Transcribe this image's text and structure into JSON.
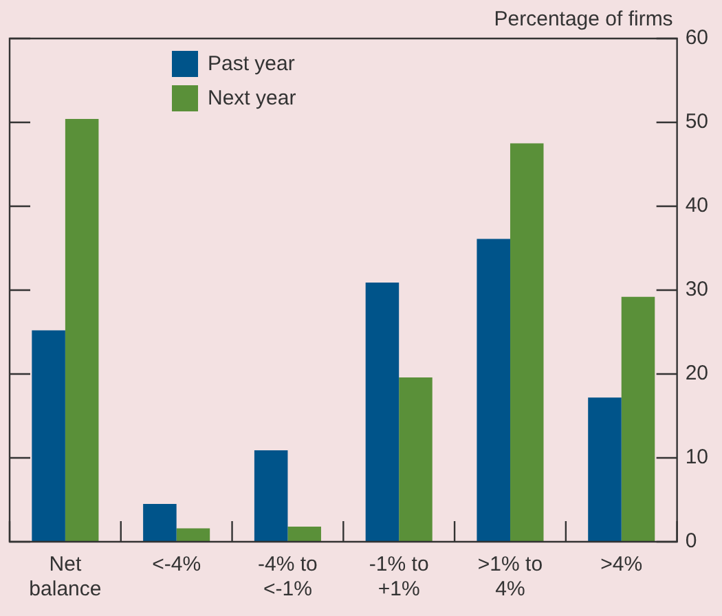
{
  "chart_data": {
    "type": "bar",
    "ylabel": "Percentage of firms",
    "categories": [
      "Net balance",
      "<-4%",
      "-4% to <-1%",
      "-1% to +1%",
      ">1% to 4%",
      ">4%"
    ],
    "series": [
      {
        "name": "Past year",
        "color": "#00548a",
        "values": [
          25.2,
          4.5,
          10.9,
          30.9,
          36.1,
          17.2
        ]
      },
      {
        "name": "Next year",
        "color": "#5a9039",
        "values": [
          50.4,
          1.6,
          1.8,
          19.6,
          47.5,
          29.2
        ]
      }
    ],
    "ylim": [
      0,
      60
    ],
    "yticks": [
      0,
      10,
      20,
      30,
      40,
      50,
      60
    ],
    "grid": false,
    "legend": "top left"
  }
}
